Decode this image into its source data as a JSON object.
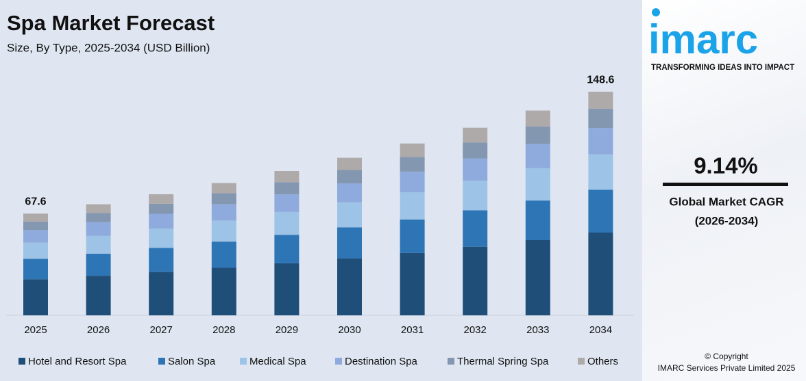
{
  "chart_data": {
    "type": "stacked_bar",
    "title": "Spa Market Forecast",
    "subtitle": "Size, By Type, 2025-2034 (USD Billion)",
    "categories": [
      "2025",
      "2026",
      "2027",
      "2028",
      "2029",
      "2030",
      "2031",
      "2032",
      "2033",
      "2034"
    ],
    "series": [
      {
        "name": "Hotel and Resort Spa",
        "color": "#1f4e79",
        "values": [
          24.0,
          26.3,
          28.8,
          31.6,
          34.6,
          37.9,
          41.5,
          45.6,
          50.0,
          55.0
        ]
      },
      {
        "name": "Salon Spa",
        "color": "#2e75b6",
        "values": [
          13.5,
          14.7,
          16.0,
          17.4,
          18.9,
          20.6,
          22.2,
          24.2,
          26.3,
          28.5
        ]
      },
      {
        "name": "Medical Spa",
        "color": "#9dc3e6",
        "values": [
          10.8,
          11.8,
          12.8,
          14.0,
          15.2,
          16.6,
          18.1,
          19.7,
          21.5,
          23.5
        ]
      },
      {
        "name": "Destination Spa",
        "color": "#8faadc",
        "values": [
          8.4,
          9.1,
          9.9,
          10.8,
          11.7,
          12.6,
          13.7,
          14.8,
          16.1,
          17.5
        ]
      },
      {
        "name": "Thermal Spring Spa",
        "color": "#8497b0",
        "values": [
          5.5,
          6.1,
          6.7,
          7.4,
          8.1,
          8.9,
          9.7,
          10.6,
          11.6,
          12.8
        ]
      },
      {
        "name": "Others",
        "color": "#aeaaaa",
        "values": [
          5.4,
          5.8,
          6.3,
          6.7,
          7.4,
          8.1,
          9.0,
          9.8,
          10.6,
          11.3
        ]
      }
    ],
    "totals": [
      67.6,
      null,
      null,
      null,
      null,
      null,
      null,
      null,
      null,
      148.6
    ],
    "ylim": [
      0,
      160
    ]
  },
  "brand": {
    "logo": "imarc",
    "tagline": "TRANSFORMING IDEAS INTO IMPACT"
  },
  "cagr": {
    "value": "9.14%",
    "label": "Global Market CAGR",
    "period": "(2026-2034)"
  },
  "footer": {
    "copyright": "© Copyright",
    "company": "IMARC Services Private Limited 2025"
  }
}
